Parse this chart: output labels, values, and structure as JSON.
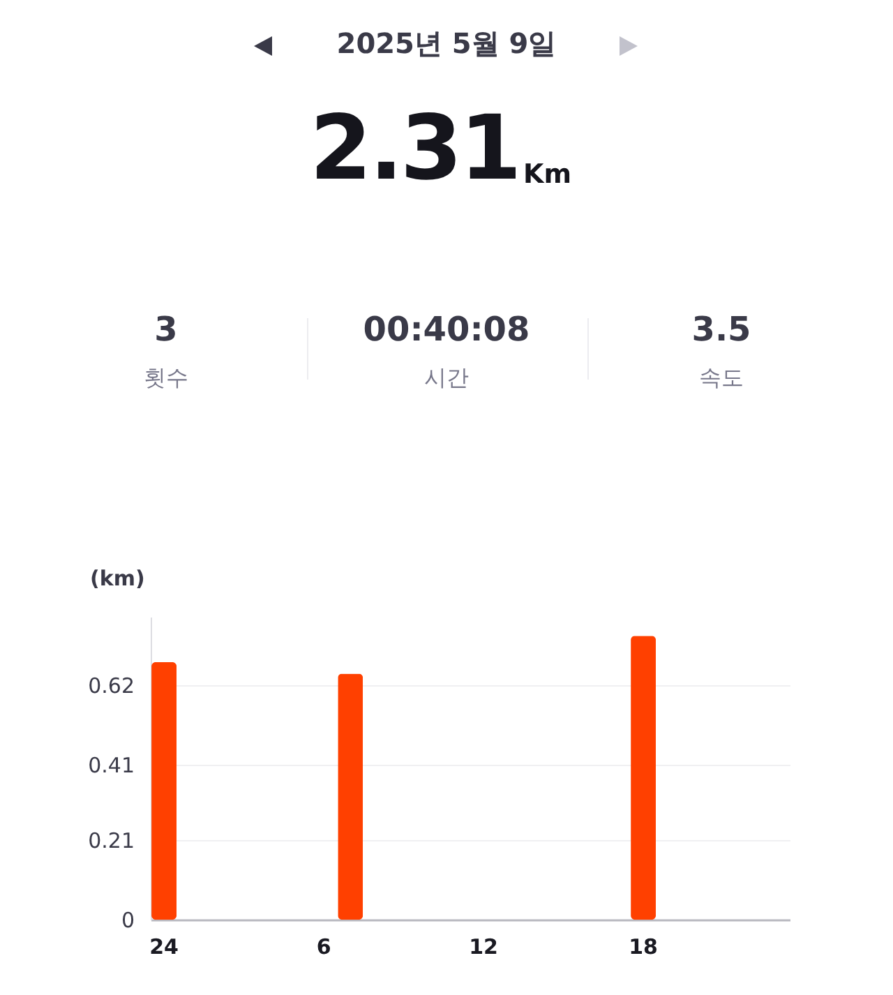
{
  "chart_data": {
    "type": "bar",
    "title": "2025년 5월 9일",
    "annotations": [
      "2.31",
      "Km",
      "3",
      "횟수",
      "00:40:08",
      "시간",
      "3.5",
      "속도"
    ],
    "ylabel": "(km)",
    "categories": [
      "24",
      null,
      null,
      null,
      null,
      null,
      "6",
      null,
      null,
      null,
      null,
      null,
      "12",
      null,
      null,
      null,
      null,
      null,
      "18",
      null,
      null,
      null,
      null,
      null
    ],
    "values": [
      0.68,
      null,
      null,
      null,
      null,
      null,
      null,
      0.65,
      null,
      null,
      null,
      null,
      null,
      null,
      null,
      null,
      null,
      null,
      0.75,
      null,
      null,
      null,
      null,
      null
    ],
    "color": "#ff4000",
    "ylim": [
      0,
      0.8
    ],
    "yticks": [
      0,
      0.21,
      0.41,
      0.62
    ],
    "grid": "y"
  }
}
